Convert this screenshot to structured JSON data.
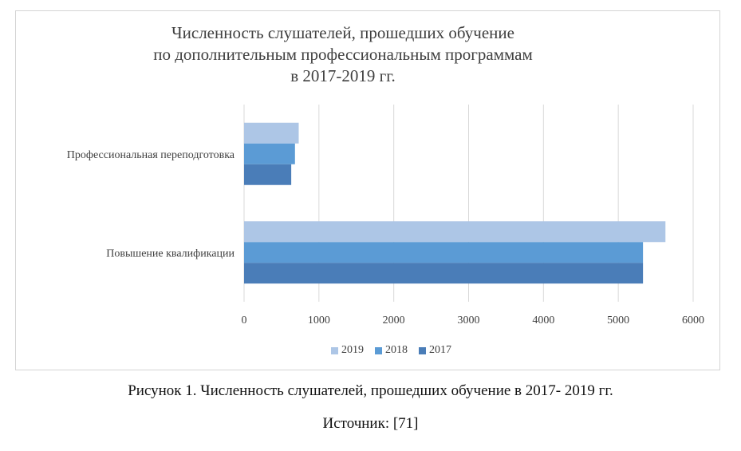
{
  "chart_data": {
    "type": "bar",
    "orientation": "horizontal",
    "title_lines": [
      "Численность слушателей, прошедших обучение",
      "по дополнительным профессиональным программам",
      "в 2017-2019 гг."
    ],
    "categories": [
      "Профессиональная переподготовка",
      "Повышение квалификации"
    ],
    "series": [
      {
        "name": "2019",
        "color": "#adc6e6",
        "values": [
          730,
          5630
        ]
      },
      {
        "name": "2018",
        "color": "#5b9bd5",
        "values": [
          680,
          5330
        ]
      },
      {
        "name": "2017",
        "color": "#4a7db8",
        "values": [
          630,
          5330
        ]
      }
    ],
    "xlim": [
      0,
      6000
    ],
    "x_ticks": [
      "0",
      "1000",
      "2000",
      "3000",
      "4000",
      "5000",
      "6000"
    ],
    "grid": true,
    "legend_position": "bottom"
  },
  "caption": {
    "figure": "Рисунок 1. Численность слушателей, прошедших обучение в 2017- 2019 гг.",
    "source": "Источник: [71]"
  }
}
